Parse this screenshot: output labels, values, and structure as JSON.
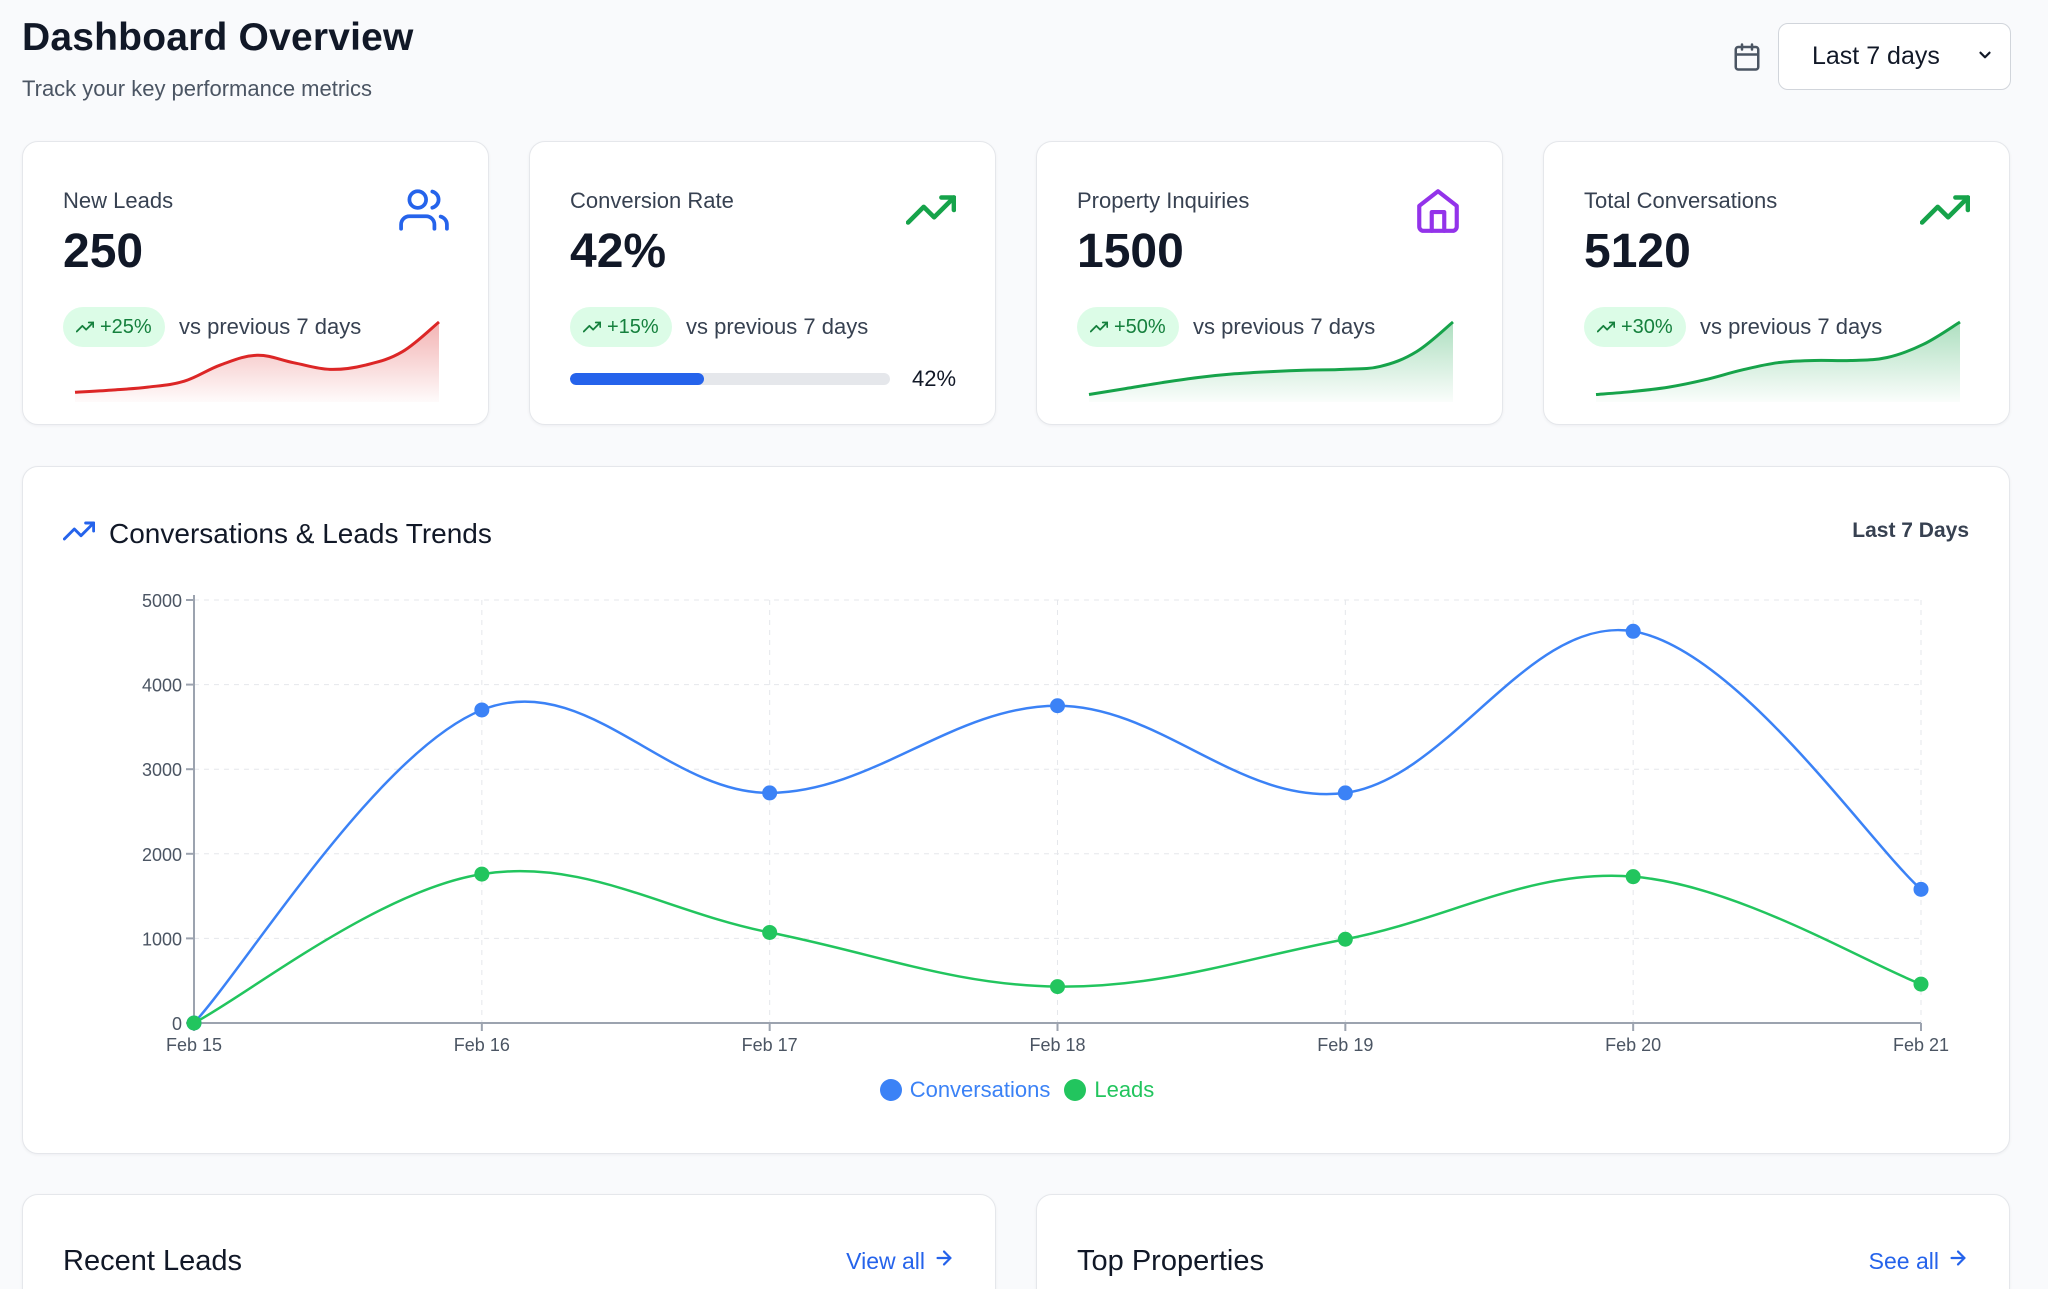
{
  "header": {
    "title": "Dashboard Overview",
    "subtitle": "Track your key performance metrics",
    "date_range": "Last 7 days"
  },
  "stats": [
    {
      "label": "New Leads",
      "value": "250",
      "change": "+25%",
      "compare": "vs previous 7 days",
      "icon": "users-icon",
      "color": "#dc2626",
      "sparkline": [
        0.05,
        0.08,
        0.12,
        0.2,
        0.42,
        0.55,
        0.45,
        0.36,
        0.42,
        0.6,
        1.0
      ]
    },
    {
      "label": "Conversion Rate",
      "value": "42%",
      "change": "+15%",
      "compare": "vs previous 7 days",
      "icon": "trending-up-icon",
      "color": "#16a34a",
      "progress": 0.42,
      "progress_label": "42%"
    },
    {
      "label": "Property Inquiries",
      "value": "1500",
      "change": "+50%",
      "compare": "vs previous 7 days",
      "icon": "home-icon",
      "color": "#16a34a",
      "sparkline": [
        0.02,
        0.1,
        0.18,
        0.25,
        0.3,
        0.33,
        0.35,
        0.36,
        0.4,
        0.6,
        1.0
      ]
    },
    {
      "label": "Total Conversations",
      "value": "5120",
      "change": "+30%",
      "compare": "vs previous 7 days",
      "icon": "trending-up-icon",
      "color": "#16a34a",
      "sparkline": [
        0.02,
        0.06,
        0.12,
        0.22,
        0.35,
        0.45,
        0.48,
        0.48,
        0.52,
        0.7,
        1.0
      ]
    }
  ],
  "trend": {
    "title": "Conversations & Leads Trends",
    "range": "Last 7 Days"
  },
  "chart_data": {
    "type": "line",
    "x": [
      "Feb 15",
      "Feb 16",
      "Feb 17",
      "Feb 18",
      "Feb 19",
      "Feb 20",
      "Feb 21"
    ],
    "ylim": [
      0,
      5000
    ],
    "yticks": [
      0,
      1000,
      2000,
      3000,
      4000,
      5000
    ],
    "grid": true,
    "legend_position": "bottom",
    "series": [
      {
        "name": "Conversations",
        "color": "#3b82f6",
        "values": [
          0,
          3700,
          2720,
          3750,
          2720,
          4630,
          1580
        ]
      },
      {
        "name": "Leads",
        "color": "#22c55e",
        "values": [
          0,
          1760,
          1070,
          430,
          990,
          1730,
          460
        ]
      }
    ]
  },
  "recent_leads": {
    "title": "Recent Leads",
    "link": "View all"
  },
  "top_properties": {
    "title": "Top Properties",
    "link": "See all"
  }
}
